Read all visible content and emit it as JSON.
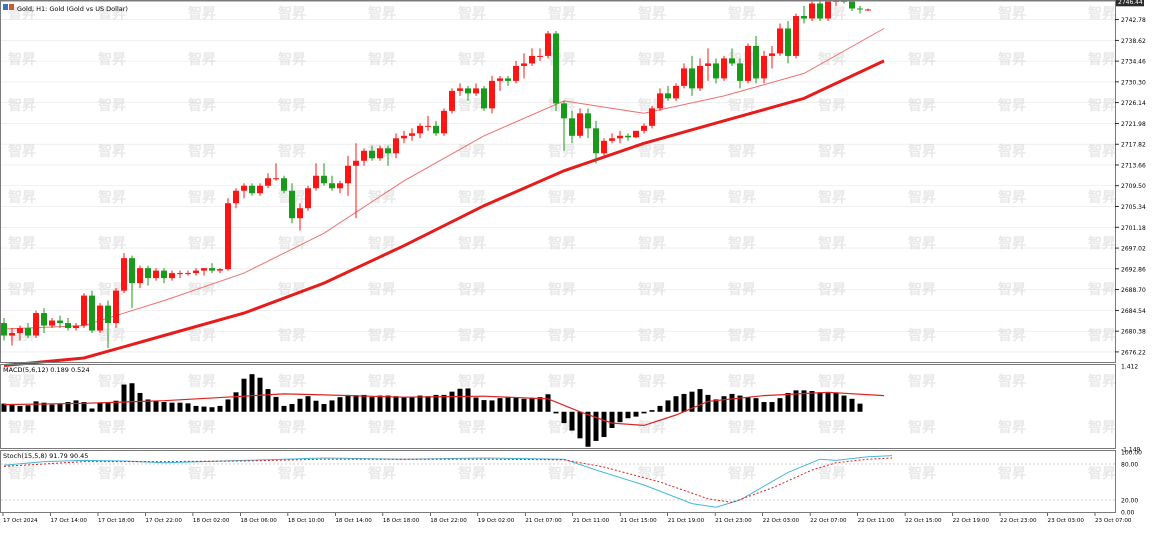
{
  "window": {
    "title": "Gold, H1:  Gold (Gold vs US Dollar)"
  },
  "watermark": {
    "text": "智昇"
  },
  "colors": {
    "bull": "#ff1414",
    "bear": "#1a9a1a",
    "ma_slow": "#e81b1b",
    "ma_fast": "#f07070",
    "macd_hist": "#000000",
    "macd_signal": "#e02020",
    "stoch_main": "#44b8d8",
    "stoch_signal": "#e02020",
    "grid": "#e6e6e6"
  },
  "chart_data": [
    {
      "type": "candlestick",
      "symbol": "Gold",
      "timeframe": "H1",
      "ylim": [
        2674,
        2746.5
      ],
      "current_price": "2746.44",
      "y_ticks": [
        "2742.78",
        "2738.62",
        "2734.46",
        "2730.30",
        "2726.14",
        "2721.98",
        "2717.82",
        "2713.66",
        "2709.50",
        "2705.34",
        "2701.18",
        "2697.02",
        "2692.86",
        "2688.70",
        "2684.54",
        "2680.38",
        "2676.22"
      ],
      "x_labels": [
        "17 Oct 2024",
        "17 Oct 14:00",
        "17 Oct 18:00",
        "17 Oct 22:00",
        "18 Oct 02:00",
        "18 Oct 06:00",
        "18 Oct 10:00",
        "18 Oct 14:00",
        "18 Oct 18:00",
        "18 Oct 22:00",
        "19 Oct 02:00",
        "21 Oct 07:00",
        "21 Oct 11:00",
        "21 Oct 15:00",
        "21 Oct 19:00",
        "21 Oct 23:00",
        "22 Oct 03:00",
        "22 Oct 07:00",
        "22 Oct 11:00",
        "22 Oct 15:00",
        "22 Oct 19:00",
        "22 Oct 23:00",
        "23 Oct 03:00",
        "23 Oct 07:00"
      ],
      "candles": [
        [
          2682.0,
          2683.0,
          2678.5,
          2679.5
        ],
        [
          2679.5,
          2681.0,
          2677.5,
          2680.0
        ],
        [
          2680.0,
          2681.5,
          2678.5,
          2681.0
        ],
        [
          2681.0,
          2682.0,
          2679.0,
          2679.5
        ],
        [
          2679.5,
          2684.5,
          2679.0,
          2684.0
        ],
        [
          2684.0,
          2685.0,
          2680.0,
          2681.5
        ],
        [
          2681.5,
          2683.0,
          2681.0,
          2682.5
        ],
        [
          2682.5,
          2683.5,
          2681.0,
          2682.0
        ],
        [
          2682.0,
          2683.0,
          2680.5,
          2681.0
        ],
        [
          2681.0,
          2682.0,
          2680.5,
          2681.5
        ],
        [
          2681.5,
          2688.0,
          2681.0,
          2687.5
        ],
        [
          2687.5,
          2688.5,
          2680.0,
          2680.5
        ],
        [
          2680.5,
          2686.0,
          2680.0,
          2685.5
        ],
        [
          2685.5,
          2686.5,
          2677.0,
          2682.0
        ],
        [
          2682.0,
          2689.0,
          2681.0,
          2688.5
        ],
        [
          2688.5,
          2696.0,
          2688.0,
          2695.0
        ],
        [
          2695.0,
          2695.5,
          2685.0,
          2690.0
        ],
        [
          2690.0,
          2693.5,
          2689.0,
          2693.0
        ],
        [
          2693.0,
          2693.5,
          2689.5,
          2691.0
        ],
        [
          2691.0,
          2693.0,
          2690.5,
          2692.5
        ],
        [
          2692.5,
          2693.0,
          2690.0,
          2691.0
        ],
        [
          2691.0,
          2692.5,
          2690.5,
          2692.0
        ],
        [
          2692.0,
          2692.5,
          2691.0,
          2692.0
        ],
        [
          2692.0,
          2692.5,
          2691.5,
          2692.0
        ],
        [
          2692.0,
          2693.0,
          2691.5,
          2692.5
        ],
        [
          2692.5,
          2693.0,
          2691.5,
          2693.0
        ],
        [
          2693.0,
          2694.0,
          2692.0,
          2692.5
        ],
        [
          2692.5,
          2693.0,
          2692.0,
          2692.8
        ],
        [
          2692.8,
          2707.0,
          2692.5,
          2706.0
        ],
        [
          2706.0,
          2709.0,
          2705.0,
          2708.5
        ],
        [
          2708.5,
          2710.0,
          2707.0,
          2709.5
        ],
        [
          2709.5,
          2710.0,
          2707.5,
          2708.0
        ],
        [
          2708.0,
          2710.0,
          2707.5,
          2709.5
        ],
        [
          2709.5,
          2712.0,
          2709.0,
          2711.0
        ],
        [
          2711.0,
          2714.0,
          2710.5,
          2711.0
        ],
        [
          2711.0,
          2711.5,
          2708.0,
          2708.5
        ],
        [
          2708.5,
          2710.0,
          2702.0,
          2703.0
        ],
        [
          2703.0,
          2706.0,
          2700.5,
          2705.0
        ],
        [
          2705.0,
          2709.5,
          2704.5,
          2709.0
        ],
        [
          2709.0,
          2714.0,
          2708.5,
          2711.5
        ],
        [
          2711.5,
          2714.0,
          2709.5,
          2710.0
        ],
        [
          2710.0,
          2711.5,
          2708.5,
          2709.0
        ],
        [
          2709.0,
          2710.5,
          2708.0,
          2710.0
        ],
        [
          2710.0,
          2715.5,
          2707.5,
          2713.5
        ],
        [
          2713.5,
          2718.0,
          2703.0,
          2714.5
        ],
        [
          2714.5,
          2717.0,
          2713.5,
          2716.5
        ],
        [
          2716.5,
          2717.5,
          2714.5,
          2715.0
        ],
        [
          2715.0,
          2717.5,
          2714.5,
          2717.0
        ],
        [
          2717.0,
          2717.5,
          2713.5,
          2716.0
        ],
        [
          2716.0,
          2720.0,
          2715.0,
          2719.0
        ],
        [
          2719.0,
          2720.5,
          2718.0,
          2719.5
        ],
        [
          2719.5,
          2721.0,
          2718.5,
          2720.0
        ],
        [
          2720.0,
          2722.0,
          2719.0,
          2721.5
        ],
        [
          2721.5,
          2723.5,
          2720.5,
          2721.5
        ],
        [
          2721.5,
          2722.5,
          2719.5,
          2720.0
        ],
        [
          2720.0,
          2725.0,
          2719.5,
          2724.5
        ],
        [
          2724.5,
          2729.0,
          2724.0,
          2728.5
        ],
        [
          2728.5,
          2730.0,
          2727.5,
          2729.0
        ],
        [
          2729.0,
          2729.5,
          2726.5,
          2728.0
        ],
        [
          2728.0,
          2730.0,
          2727.5,
          2729.0
        ],
        [
          2729.0,
          2729.5,
          2724.5,
          2725.0
        ],
        [
          2725.0,
          2731.5,
          2724.0,
          2730.5
        ],
        [
          2730.5,
          2731.5,
          2728.5,
          2731.0
        ],
        [
          2731.0,
          2731.5,
          2729.5,
          2730.5
        ],
        [
          2730.5,
          2734.5,
          2730.0,
          2733.5
        ],
        [
          2733.5,
          2736.0,
          2731.0,
          2734.0
        ],
        [
          2734.0,
          2737.0,
          2733.5,
          2735.5
        ],
        [
          2735.5,
          2737.0,
          2734.5,
          2735.5
        ],
        [
          2735.5,
          2740.5,
          2735.0,
          2740.0
        ],
        [
          2740.0,
          2740.5,
          2724.5,
          2726.0
        ],
        [
          2726.0,
          2726.5,
          2716.5,
          2723.0
        ],
        [
          2723.0,
          2724.5,
          2718.0,
          2719.5
        ],
        [
          2719.5,
          2725.0,
          2719.0,
          2724.0
        ],
        [
          2724.0,
          2725.0,
          2719.0,
          2721.0
        ],
        [
          2721.0,
          2722.5,
          2714.0,
          2716.0
        ],
        [
          2716.0,
          2719.0,
          2715.5,
          2718.5
        ],
        [
          2718.5,
          2720.0,
          2718.0,
          2719.0
        ],
        [
          2719.0,
          2720.5,
          2718.0,
          2719.5
        ],
        [
          2719.5,
          2720.0,
          2718.5,
          2719.2
        ],
        [
          2719.2,
          2720.5,
          2719.0,
          2720.5
        ],
        [
          2720.5,
          2722.0,
          2720.0,
          2721.5
        ],
        [
          2721.5,
          2725.5,
          2721.0,
          2725.0
        ],
        [
          2725.0,
          2729.0,
          2724.5,
          2728.0
        ],
        [
          2728.0,
          2729.5,
          2726.5,
          2727.0
        ],
        [
          2727.0,
          2730.0,
          2726.5,
          2729.5
        ],
        [
          2729.5,
          2734.0,
          2729.0,
          2733.0
        ],
        [
          2733.0,
          2735.5,
          2727.5,
          2729.0
        ],
        [
          2729.0,
          2735.0,
          2728.5,
          2733.5
        ],
        [
          2733.5,
          2737.0,
          2730.5,
          2734.0
        ],
        [
          2734.0,
          2735.0,
          2730.0,
          2731.0
        ],
        [
          2731.0,
          2735.5,
          2730.5,
          2735.0
        ],
        [
          2735.0,
          2737.0,
          2733.5,
          2734.0
        ],
        [
          2734.0,
          2735.0,
          2729.0,
          2730.5
        ],
        [
          2730.5,
          2738.0,
          2730.0,
          2737.5
        ],
        [
          2737.5,
          2739.5,
          2730.0,
          2731.0
        ],
        [
          2731.0,
          2736.5,
          2730.0,
          2735.5
        ],
        [
          2735.5,
          2737.5,
          2733.0,
          2736.0
        ],
        [
          2736.0,
          2742.0,
          2735.5,
          2741.0
        ],
        [
          2741.0,
          2742.5,
          2734.0,
          2735.5
        ],
        [
          2735.5,
          2744.0,
          2735.0,
          2743.5
        ],
        [
          2743.5,
          2745.5,
          2742.0,
          2743.0
        ],
        [
          2743.0,
          2746.5,
          2742.5,
          2746.0
        ],
        [
          2746.0,
          2747.0,
          2742.5,
          2743.0
        ],
        [
          2743.0,
          2747.0,
          2742.5,
          2746.5
        ],
        [
          2746.5,
          2746.8,
          2745.5,
          2746.5
        ],
        [
          2746.5,
          2746.8,
          2746.0,
          2746.4
        ],
        [
          2746.4,
          2746.8,
          2744.5,
          2745.0
        ],
        [
          2745.0,
          2745.5,
          2744.0,
          2744.8
        ],
        [
          2744.8,
          2745.0,
          2744.5,
          2744.8
        ]
      ],
      "ma_fast": [
        [
          0,
          2680.8
        ],
        [
          10,
          2681.5
        ],
        [
          20,
          2686.5
        ],
        [
          30,
          2692.0
        ],
        [
          40,
          2700.0
        ],
        [
          50,
          2710.5
        ],
        [
          60,
          2719.5
        ],
        [
          70,
          2726.5
        ],
        [
          80,
          2724.0
        ],
        [
          90,
          2727.5
        ],
        [
          100,
          2732.0
        ],
        [
          110,
          2741.0
        ]
      ],
      "ma_slow": [
        [
          0,
          2673.5
        ],
        [
          10,
          2675.0
        ],
        [
          20,
          2679.5
        ],
        [
          30,
          2684.0
        ],
        [
          40,
          2690.0
        ],
        [
          50,
          2697.5
        ],
        [
          60,
          2705.5
        ],
        [
          70,
          2712.5
        ],
        [
          80,
          2718.0
        ],
        [
          90,
          2722.5
        ],
        [
          100,
          2727.0
        ],
        [
          110,
          2734.5
        ]
      ]
    },
    {
      "type": "macd",
      "label": "MACD(5,6,12) 0.189 0.524",
      "ylim": [
        -1.149,
        1.412
      ],
      "y_ticks": [
        "1.412",
        "-1.149"
      ],
      "histogram": [
        0.25,
        0.22,
        0.18,
        0.2,
        0.32,
        0.28,
        0.22,
        0.25,
        0.3,
        0.35,
        0.3,
        0.1,
        0.28,
        0.3,
        0.34,
        0.84,
        0.88,
        0.58,
        0.38,
        0.32,
        0.3,
        0.28,
        0.28,
        0.26,
        0.18,
        0.16,
        0.14,
        0.18,
        0.38,
        0.6,
        1.02,
        1.16,
        1.05,
        0.7,
        0.46,
        0.18,
        0.24,
        0.4,
        0.48,
        0.34,
        0.24,
        0.35,
        0.45,
        0.52,
        0.51,
        0.52,
        0.46,
        0.5,
        0.5,
        0.48,
        0.45,
        0.46,
        0.5,
        0.48,
        0.52,
        0.52,
        0.62,
        0.71,
        0.72,
        0.44,
        0.36,
        0.35,
        0.42,
        0.46,
        0.45,
        0.4,
        0.43,
        0.45,
        0.54,
        -0.05,
        -0.35,
        -0.58,
        -0.82,
        -1.08,
        -0.9,
        -0.78,
        -0.5,
        -0.32,
        -0.2,
        -0.15,
        -0.05,
        0.05,
        0.18,
        0.35,
        0.48,
        0.55,
        0.62,
        0.7,
        0.52,
        0.38,
        0.48,
        0.55,
        0.5,
        0.45,
        0.42,
        0.3,
        0.3,
        0.42,
        0.58,
        0.66,
        0.66,
        0.64,
        0.6,
        0.6,
        0.58,
        0.5,
        0.4,
        0.25
      ],
      "signal": [
        [
          0,
          0.22
        ],
        [
          10,
          0.26
        ],
        [
          20,
          0.34
        ],
        [
          30,
          0.48
        ],
        [
          35,
          0.55
        ],
        [
          40,
          0.52
        ],
        [
          50,
          0.45
        ],
        [
          60,
          0.48
        ],
        [
          68,
          0.4
        ],
        [
          72,
          0.0
        ],
        [
          76,
          -0.35
        ],
        [
          80,
          -0.42
        ],
        [
          84,
          -0.1
        ],
        [
          88,
          0.32
        ],
        [
          95,
          0.5
        ],
        [
          103,
          0.6
        ],
        [
          110,
          0.5
        ]
      ]
    },
    {
      "type": "stochastic",
      "label": "Stoch(15,5,8) 91.79 90.45",
      "ylim": [
        0,
        100
      ],
      "levels": [
        "100.00",
        "80.00",
        "20.00",
        "0.00"
      ],
      "main": [
        [
          0,
          78
        ],
        [
          5,
          84
        ],
        [
          10,
          86
        ],
        [
          15,
          85
        ],
        [
          20,
          82
        ],
        [
          30,
          86
        ],
        [
          40,
          90
        ],
        [
          50,
          88
        ],
        [
          60,
          90
        ],
        [
          70,
          88
        ],
        [
          74,
          70
        ],
        [
          80,
          45
        ],
        [
          86,
          14
        ],
        [
          89,
          8
        ],
        [
          92,
          20
        ],
        [
          98,
          66
        ],
        [
          102,
          88
        ],
        [
          104,
          86
        ],
        [
          108,
          92
        ],
        [
          111,
          94
        ]
      ],
      "signal": [
        [
          0,
          76
        ],
        [
          10,
          84
        ],
        [
          20,
          84
        ],
        [
          30,
          85
        ],
        [
          40,
          88
        ],
        [
          50,
          88
        ],
        [
          60,
          88
        ],
        [
          70,
          87
        ],
        [
          75,
          75
        ],
        [
          82,
          50
        ],
        [
          88,
          22
        ],
        [
          91,
          16
        ],
        [
          96,
          40
        ],
        [
          101,
          70
        ],
        [
          104,
          82
        ],
        [
          108,
          88
        ],
        [
          111,
          90
        ]
      ]
    }
  ]
}
